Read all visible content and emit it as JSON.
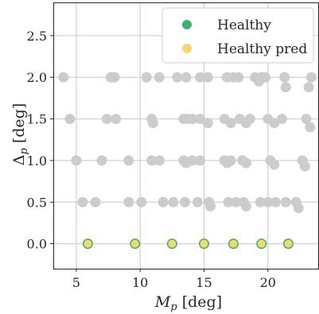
{
  "chart_data": {
    "type": "scatter",
    "xlabel": "M_p [deg]",
    "ylabel": "Δ_p [deg]",
    "xlim": [
      3.2,
      24.0
    ],
    "ylim": [
      -0.3,
      2.9
    ],
    "x_ticks": [
      5,
      10,
      15,
      20
    ],
    "y_ticks": [
      0.0,
      0.5,
      1.0,
      1.5,
      2.0,
      2.5
    ],
    "x_tick_labels": [
      "5",
      "10",
      "15",
      "20"
    ],
    "y_tick_labels": [
      "0.0",
      "0.5",
      "1.0",
      "1.5",
      "2.0",
      "2.5"
    ],
    "grid": true,
    "legend_position": "top-right",
    "series": [
      {
        "name": "background",
        "color": "#cccccc",
        "points": [
          [
            4.0,
            2.0
          ],
          [
            7.7,
            2.0
          ],
          [
            8.0,
            2.0
          ],
          [
            10.5,
            2.0
          ],
          [
            11.5,
            2.0
          ],
          [
            12.9,
            2.0
          ],
          [
            13.6,
            2.0
          ],
          [
            14.7,
            2.0
          ],
          [
            15.3,
            2.0
          ],
          [
            16.8,
            2.0
          ],
          [
            17.3,
            2.0
          ],
          [
            17.7,
            2.0
          ],
          [
            19.0,
            2.0
          ],
          [
            19.5,
            2.0
          ],
          [
            19.8,
            2.0
          ],
          [
            21.3,
            2.0
          ],
          [
            23.4,
            2.0
          ],
          [
            19.3,
            1.95
          ],
          [
            21.4,
            1.88
          ],
          [
            23.2,
            1.88
          ],
          [
            4.5,
            1.5
          ],
          [
            7.4,
            1.5
          ],
          [
            8.1,
            1.5
          ],
          [
            10.9,
            1.5
          ],
          [
            11.0,
            1.45
          ],
          [
            13.4,
            1.5
          ],
          [
            13.7,
            1.5
          ],
          [
            14.1,
            1.5
          ],
          [
            14.7,
            1.5
          ],
          [
            15.3,
            1.45
          ],
          [
            16.6,
            1.5
          ],
          [
            17.1,
            1.45
          ],
          [
            17.8,
            1.5
          ],
          [
            18.3,
            1.45
          ],
          [
            18.6,
            1.5
          ],
          [
            20.0,
            1.5
          ],
          [
            20.5,
            1.45
          ],
          [
            21.1,
            1.5
          ],
          [
            23.0,
            1.5
          ],
          [
            23.3,
            1.4
          ],
          [
            5.0,
            1.0
          ],
          [
            7.0,
            1.0
          ],
          [
            9.1,
            1.0
          ],
          [
            10.9,
            1.0
          ],
          [
            11.5,
            1.0
          ],
          [
            13.4,
            1.0
          ],
          [
            13.6,
            0.97
          ],
          [
            14.1,
            1.0
          ],
          [
            14.7,
            1.0
          ],
          [
            16.6,
            1.0
          ],
          [
            16.8,
            0.97
          ],
          [
            17.1,
            1.0
          ],
          [
            18.0,
            1.0
          ],
          [
            18.3,
            0.97
          ],
          [
            20.2,
            1.0
          ],
          [
            20.5,
            0.95
          ],
          [
            22.7,
            1.0
          ],
          [
            22.9,
            0.93
          ],
          [
            5.5,
            0.5
          ],
          [
            6.5,
            0.5
          ],
          [
            9.1,
            0.5
          ],
          [
            10.1,
            0.5
          ],
          [
            11.8,
            0.5
          ],
          [
            12.6,
            0.5
          ],
          [
            13.5,
            0.5
          ],
          [
            14.5,
            0.5
          ],
          [
            15.4,
            0.5
          ],
          [
            15.5,
            0.45
          ],
          [
            16.9,
            0.5
          ],
          [
            17.5,
            0.5
          ],
          [
            18.1,
            0.5
          ],
          [
            18.3,
            0.45
          ],
          [
            19.4,
            0.5
          ],
          [
            20.0,
            0.5
          ],
          [
            20.6,
            0.5
          ],
          [
            21.4,
            0.5
          ],
          [
            22.2,
            0.5
          ],
          [
            22.4,
            0.43
          ]
        ]
      },
      {
        "name": "Healthy",
        "color": "#3cb371",
        "points": [
          [
            5.9,
            0.0
          ],
          [
            9.6,
            0.0
          ],
          [
            12.5,
            0.0
          ],
          [
            15.0,
            0.0
          ],
          [
            17.3,
            0.0
          ],
          [
            19.5,
            0.0
          ],
          [
            21.6,
            0.0
          ]
        ]
      },
      {
        "name": "Healthy pred",
        "color": "#f5d76e",
        "points": [
          [
            5.9,
            0.0
          ],
          [
            9.6,
            0.0
          ],
          [
            12.5,
            0.0
          ],
          [
            15.0,
            0.0
          ],
          [
            17.3,
            0.0
          ],
          [
            19.5,
            0.0
          ],
          [
            21.6,
            0.0
          ]
        ]
      }
    ],
    "legend": [
      {
        "label": "Healthy",
        "color": "#3cb371"
      },
      {
        "label": "Healthy pred",
        "color": "#f5d76e"
      }
    ]
  }
}
